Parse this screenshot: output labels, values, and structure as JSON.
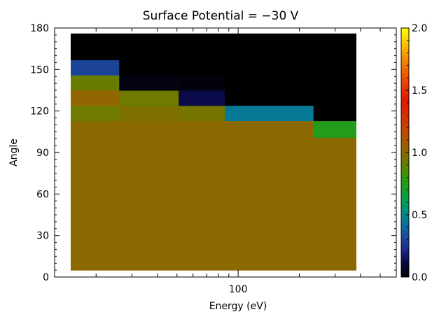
{
  "chart_data": {
    "type": "heatmap",
    "title": "Surface Potential = −30 V",
    "xlabel": "Energy (eV)",
    "ylabel": "Angle",
    "x_scale": "log",
    "x_ticks": [
      {
        "value": 100,
        "label": "100"
      }
    ],
    "y_ticks": [
      {
        "value": 0,
        "label": "0"
      },
      {
        "value": 30,
        "label": "30"
      },
      {
        "value": 60,
        "label": "60"
      },
      {
        "value": 90,
        "label": "90"
      },
      {
        "value": 120,
        "label": "120"
      },
      {
        "value": 150,
        "label": "150"
      },
      {
        "value": 180,
        "label": "180"
      }
    ],
    "ylim": [
      0,
      180
    ],
    "xlim": [
      12.5,
      600
    ],
    "colorbar": {
      "range": [
        0,
        2
      ],
      "ticks": [
        {
          "value": 0.0,
          "label": "0.0"
        },
        {
          "value": 0.5,
          "label": "0.5"
        },
        {
          "value": 1.0,
          "label": "1.0"
        },
        {
          "value": 1.5,
          "label": "1.5"
        },
        {
          "value": 2.0,
          "label": "2.0"
        }
      ],
      "colormap": [
        [
          0.0,
          "#000000"
        ],
        [
          0.12,
          "#0a0a4a"
        ],
        [
          0.22,
          "#1e2a8a"
        ],
        [
          0.32,
          "#1a4a9a"
        ],
        [
          0.42,
          "#0a6e9e"
        ],
        [
          0.5,
          "#008a88"
        ],
        [
          0.58,
          "#009a60"
        ],
        [
          0.68,
          "#10a030"
        ],
        [
          0.78,
          "#2a9a10"
        ],
        [
          0.86,
          "#4e8a00"
        ],
        [
          0.93,
          "#6e7a00"
        ],
        [
          1.0,
          "#8a6a00"
        ],
        [
          1.08,
          "#a85a00"
        ],
        [
          1.18,
          "#c04800"
        ],
        [
          1.3,
          "#d63000"
        ],
        [
          1.42,
          "#e01800"
        ],
        [
          1.55,
          "#e84000"
        ],
        [
          1.68,
          "#f07000"
        ],
        [
          1.8,
          "#f8a000"
        ],
        [
          1.9,
          "#ffd000"
        ],
        [
          2.0,
          "#ffff00"
        ]
      ]
    },
    "energy_bins": [
      {
        "low": 15,
        "high": 26
      },
      {
        "low": 26,
        "high": 51
      },
      {
        "low": 51,
        "high": 86
      },
      {
        "low": 86,
        "high": 235
      },
      {
        "low": 235,
        "high": 380
      }
    ],
    "angle_bins": [
      {
        "low": 5,
        "high": 113
      },
      {
        "low": 113,
        "high": 124
      },
      {
        "low": 124,
        "high": 135
      },
      {
        "low": 135,
        "high": 146
      },
      {
        "low": 146,
        "high": 157
      },
      {
        "low": 157,
        "high": 176
      }
    ],
    "cells": [
      {
        "e": [
          15,
          26
        ],
        "a": [
          5,
          113
        ],
        "value": 1.0
      },
      {
        "e": [
          26,
          51
        ],
        "a": [
          5,
          113
        ],
        "value": 1.0
      },
      {
        "e": [
          51,
          86
        ],
        "a": [
          5,
          113
        ],
        "value": 1.0
      },
      {
        "e": [
          86,
          235
        ],
        "a": [
          5,
          113
        ],
        "value": 1.0
      },
      {
        "e": [
          235,
          380
        ],
        "a": [
          5,
          101
        ],
        "value": 1.0
      },
      {
        "e": [
          235,
          380
        ],
        "a": [
          101,
          113
        ],
        "value": 0.75
      },
      {
        "e": [
          15,
          26
        ],
        "a": [
          113,
          124
        ],
        "value": 0.93
      },
      {
        "e": [
          26,
          51
        ],
        "a": [
          113,
          124
        ],
        "value": 0.97
      },
      {
        "e": [
          51,
          86
        ],
        "a": [
          113,
          124
        ],
        "value": 0.95
      },
      {
        "e": [
          86,
          235
        ],
        "a": [
          113,
          124
        ],
        "value": 0.45
      },
      {
        "e": [
          235,
          380
        ],
        "a": [
          113,
          124
        ],
        "value": 0.0
      },
      {
        "e": [
          15,
          26
        ],
        "a": [
          124,
          135
        ],
        "value": 1.02
      },
      {
        "e": [
          26,
          51
        ],
        "a": [
          124,
          135
        ],
        "value": 0.93
      },
      {
        "e": [
          51,
          86
        ],
        "a": [
          124,
          135
        ],
        "value": 0.12
      },
      {
        "e": [
          86,
          235
        ],
        "a": [
          124,
          135
        ],
        "value": 0.0
      },
      {
        "e": [
          235,
          380
        ],
        "a": [
          124,
          135
        ],
        "value": 0.0
      },
      {
        "e": [
          15,
          26
        ],
        "a": [
          135,
          146
        ],
        "value": 0.92
      },
      {
        "e": [
          26,
          51
        ],
        "a": [
          135,
          146
        ],
        "value": 0.03
      },
      {
        "e": [
          51,
          86
        ],
        "a": [
          135,
          146
        ],
        "value": 0.02
      },
      {
        "e": [
          86,
          235
        ],
        "a": [
          135,
          146
        ],
        "value": 0.0
      },
      {
        "e": [
          235,
          380
        ],
        "a": [
          135,
          146
        ],
        "value": 0.0
      },
      {
        "e": [
          15,
          26
        ],
        "a": [
          146,
          157
        ],
        "value": 0.3
      },
      {
        "e": [
          26,
          51
        ],
        "a": [
          146,
          157
        ],
        "value": 0.0
      },
      {
        "e": [
          51,
          86
        ],
        "a": [
          146,
          157
        ],
        "value": 0.0
      },
      {
        "e": [
          86,
          235
        ],
        "a": [
          146,
          157
        ],
        "value": 0.0
      },
      {
        "e": [
          235,
          380
        ],
        "a": [
          146,
          157
        ],
        "value": 0.0
      },
      {
        "e": [
          15,
          26
        ],
        "a": [
          157,
          176
        ],
        "value": 0.0
      },
      {
        "e": [
          26,
          51
        ],
        "a": [
          157,
          176
        ],
        "value": 0.0
      },
      {
        "e": [
          51,
          86
        ],
        "a": [
          157,
          176
        ],
        "value": 0.0
      },
      {
        "e": [
          86,
          235
        ],
        "a": [
          157,
          176
        ],
        "value": 0.0
      },
      {
        "e": [
          235,
          380
        ],
        "a": [
          157,
          176
        ],
        "value": 0.0
      }
    ]
  }
}
